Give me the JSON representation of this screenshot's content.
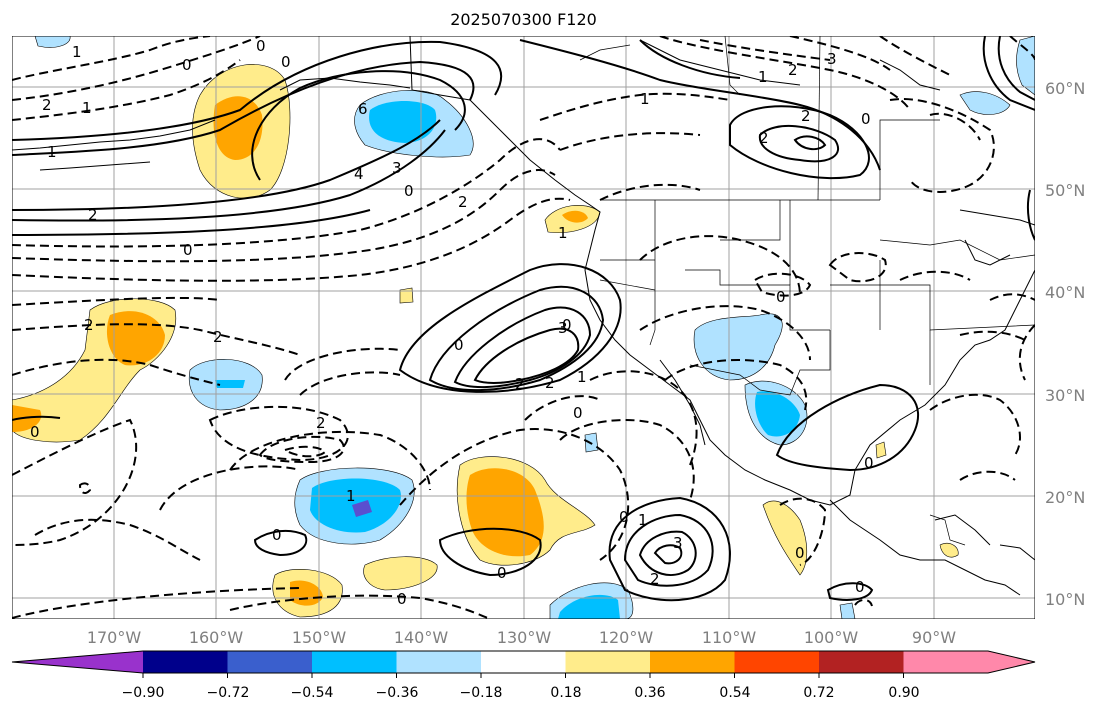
{
  "title": "2025070300 F120",
  "map": {
    "lon_labels": [
      "170°W",
      "160°W",
      "150°W",
      "140°W",
      "130°W",
      "120°W",
      "110°W",
      "100°W",
      "90°W"
    ],
    "lat_labels": [
      "60°N",
      "50°N",
      "40°N",
      "30°N",
      "20°N",
      "10°N"
    ],
    "contour_labels": [
      "1",
      "0",
      "2",
      "1",
      "6",
      "3",
      "4",
      "0",
      "2",
      "2",
      "0",
      "2",
      "2",
      "0",
      "2",
      "1",
      "1",
      "0",
      "1",
      "0",
      "3",
      "0",
      "3",
      "2",
      "2",
      "1",
      "0",
      "2",
      "2",
      "1",
      "0",
      "0",
      "1",
      "0",
      "0",
      "3",
      "2",
      "0",
      "0",
      "0",
      "0",
      "2",
      "0",
      "1",
      "0"
    ],
    "colors": {
      "contour": "#000000",
      "coast": "#000000",
      "grid": "#a0a0a0"
    }
  },
  "colorbar": {
    "colors": [
      "#9932cc",
      "#00008b",
      "#3a5fcd",
      "#00bfff",
      "#b0e2ff",
      "#ffffff",
      "#ffec8b",
      "#ffa500",
      "#ff4500",
      "#b22222",
      "#ff88aa"
    ],
    "tick_labels": [
      "−0.90",
      "−0.72",
      "−0.54",
      "−0.36",
      "−0.18",
      "0.18",
      "0.36",
      "0.54",
      "0.72",
      "0.90"
    ]
  }
}
